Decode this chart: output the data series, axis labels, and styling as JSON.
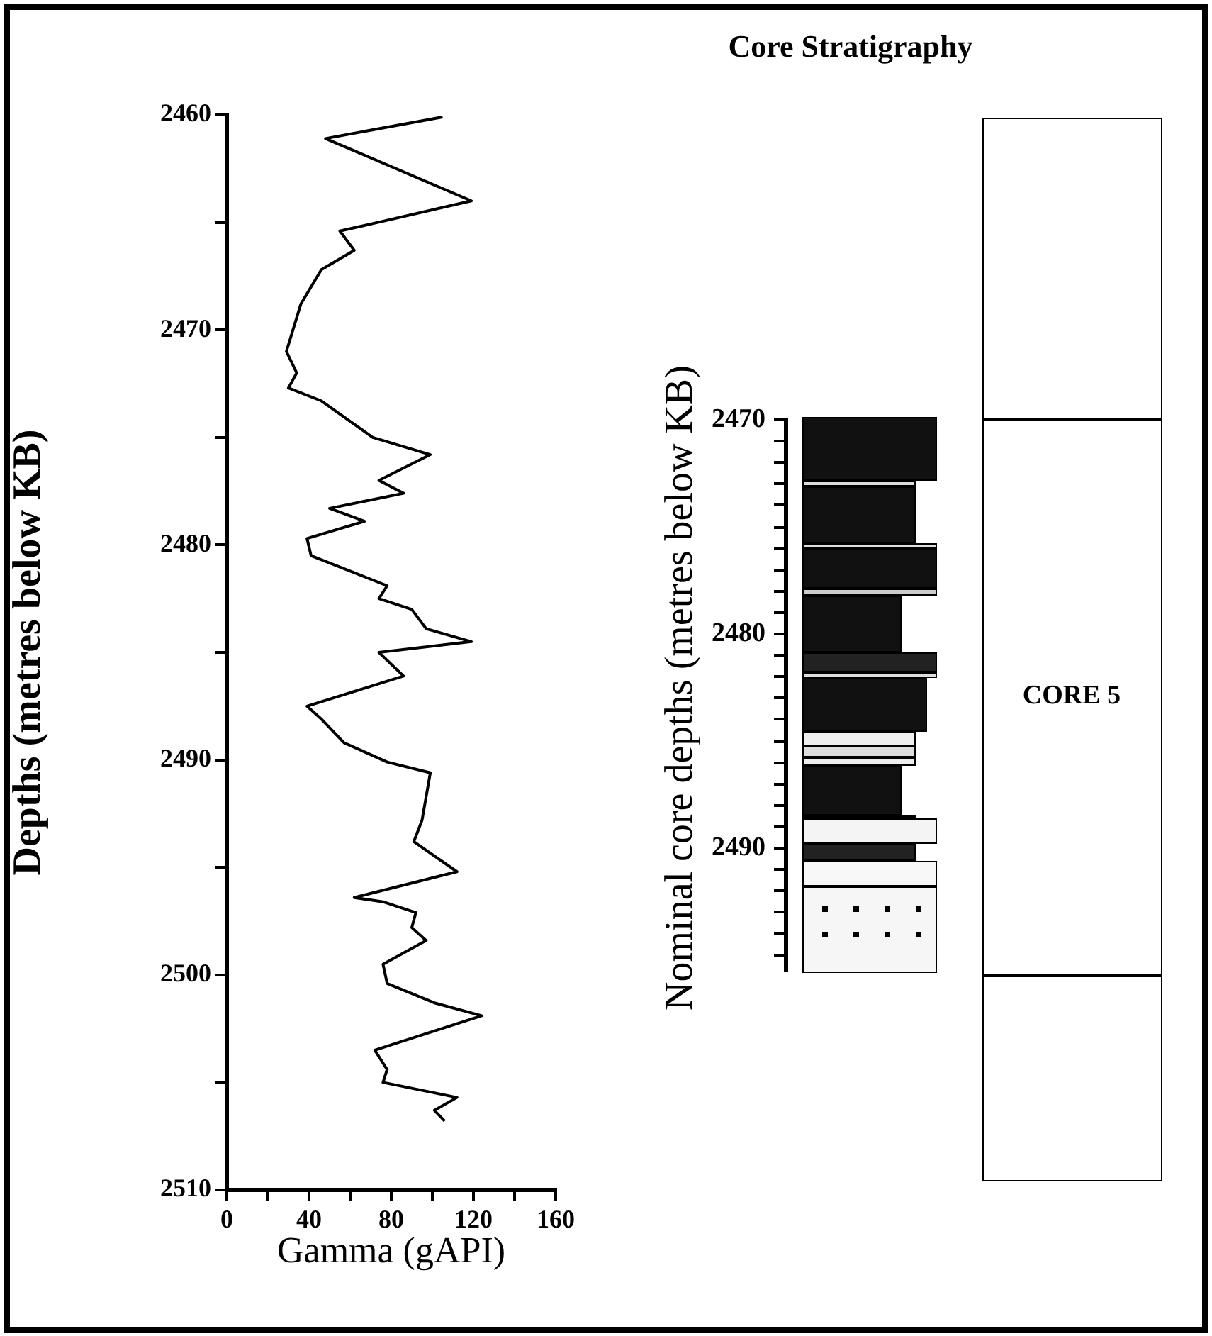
{
  "chart_data": [
    {
      "type": "line",
      "xlabel": "Gamma (gAPI)",
      "ylabel": "Depths (metres below KB)",
      "xlim": [
        0,
        160
      ],
      "xticks": [
        0,
        {
          "value": 20,
          "label": null
        },
        40,
        {
          "value": 60,
          "label": null
        },
        80,
        {
          "value": 100,
          "label": null
        },
        120,
        {
          "value": 140,
          "label": null
        },
        160
      ],
      "ylim": [
        2510,
        2460
      ],
      "yticks": [
        2460,
        {
          "value": 2465,
          "label": null
        },
        2470,
        {
          "value": 2475,
          "label": null
        },
        2480,
        {
          "value": 2485,
          "label": null
        },
        2490,
        {
          "value": 2495,
          "label": null
        },
        2500,
        {
          "value": 2505,
          "label": null
        },
        2510
      ],
      "grid": false,
      "legend": false,
      "marker": "none",
      "line_style": "solid",
      "series": [
        {
          "color": "#000000",
          "x": [
            105,
            48,
            119,
            69,
            55,
            62,
            46,
            36,
            29,
            34,
            30,
            46,
            71,
            99,
            74,
            86,
            50,
            67,
            39,
            41,
            78,
            74,
            90,
            97,
            119,
            74,
            86,
            39,
            46,
            57,
            78,
            99,
            95,
            91,
            112,
            62,
            76,
            92,
            90,
            97,
            76,
            78,
            101,
            124,
            72,
            78,
            76,
            112,
            101,
            106
          ],
          "values": [
            2460.1,
            2461.1,
            2464.0,
            2465.1,
            2465.4,
            2466.3,
            2467.2,
            2468.8,
            2471.0,
            2472.0,
            2472.7,
            2473.3,
            2475.0,
            2475.8,
            2477.0,
            2477.6,
            2478.3,
            2478.9,
            2479.7,
            2480.5,
            2481.9,
            2482.5,
            2483.0,
            2483.9,
            2484.5,
            2485.0,
            2486.1,
            2487.5,
            2488.1,
            2489.2,
            2490.1,
            2490.6,
            2492.8,
            2493.8,
            2495.2,
            2496.4,
            2496.6,
            2497.1,
            2497.8,
            2498.4,
            2499.5,
            2500.4,
            2501.3,
            2501.9,
            2503.5,
            2504.4,
            2505.0,
            2505.7,
            2506.3,
            2506.8
          ]
        }
      ]
    },
    {
      "type": "other",
      "title": "Core Stratigraphy",
      "ylabel": "Nominal core depths (metres below KB)",
      "annotations": [
        "2470",
        "2480",
        "2490",
        "CORE 5"
      ]
    }
  ]
}
